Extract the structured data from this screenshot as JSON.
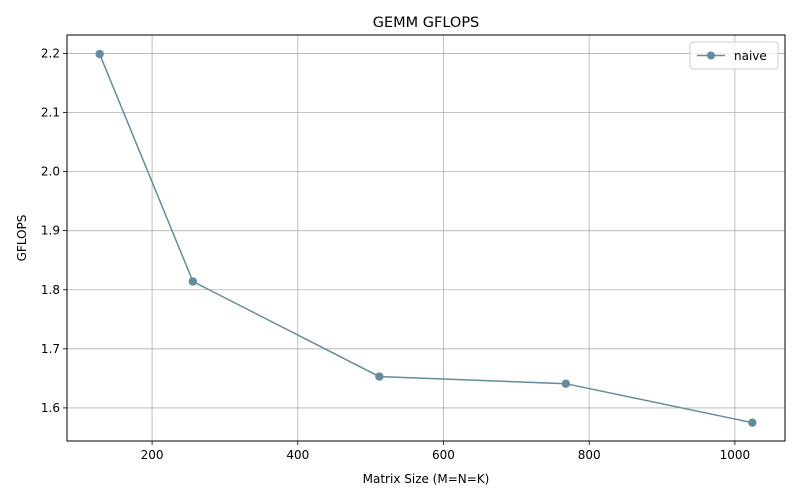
{
  "chart_data": {
    "type": "line",
    "title": "GEMM GFLOPS",
    "xlabel": "Matrix Size (M=N=K)",
    "ylabel": "GFLOPS",
    "xlim": [
      83.2,
      1068.8
    ],
    "ylim": [
      1.544,
      2.2312
    ],
    "xticks": [
      200,
      400,
      600,
      800,
      1000
    ],
    "xtick_labels": [
      "200",
      "400",
      "600",
      "800",
      "1000"
    ],
    "yticks": [
      1.6,
      1.7,
      1.8,
      1.9,
      2.0,
      2.1,
      2.2
    ],
    "ytick_labels": [
      "1.6",
      "1.7",
      "1.8",
      "1.9",
      "2.0",
      "2.1",
      "2.2"
    ],
    "grid": true,
    "legend_position": "top-right",
    "series": [
      {
        "name": "naive",
        "color": "#648c9e",
        "marker": "circle",
        "x": [
          128,
          256,
          512,
          768,
          1024
        ],
        "y": [
          2.199,
          1.814,
          1.653,
          1.641,
          1.575
        ]
      }
    ]
  }
}
